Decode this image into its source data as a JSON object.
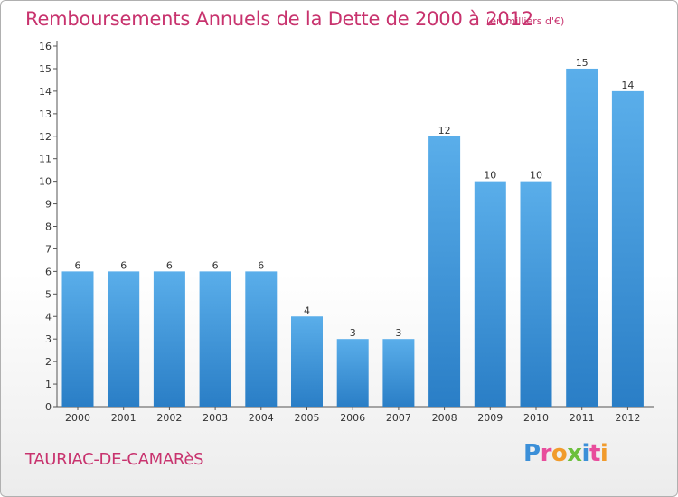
{
  "header": {
    "title": "Remboursements Annuels de la Dette de 2000 à 2012",
    "unit": "(en milliers d'€)"
  },
  "footer": {
    "place": "TAURIAC-DE-CAMARèS",
    "logo_letters": [
      "P",
      "r",
      "o",
      "x",
      "i",
      "t",
      "i"
    ]
  },
  "colors": {
    "bar_light": "#5aaeea",
    "bar_dark": "#2a7ec6",
    "accent": "#c8336e"
  },
  "chart_data": {
    "type": "bar",
    "title": "Remboursements Annuels de la Dette de 2000 à 2012",
    "xlabel": "",
    "ylabel": "(en milliers d'€)",
    "categories": [
      "2000",
      "2001",
      "2002",
      "2003",
      "2004",
      "2005",
      "2006",
      "2007",
      "2008",
      "2009",
      "2010",
      "2011",
      "2012"
    ],
    "values": [
      6,
      6,
      6,
      6,
      6,
      4,
      3,
      3,
      12,
      10,
      10,
      15,
      14
    ],
    "ylim": [
      0,
      16
    ],
    "yticks": [
      0,
      1,
      2,
      3,
      4,
      5,
      6,
      7,
      8,
      9,
      10,
      11,
      12,
      13,
      14,
      15,
      16
    ],
    "grid": false,
    "data_labels": true
  }
}
